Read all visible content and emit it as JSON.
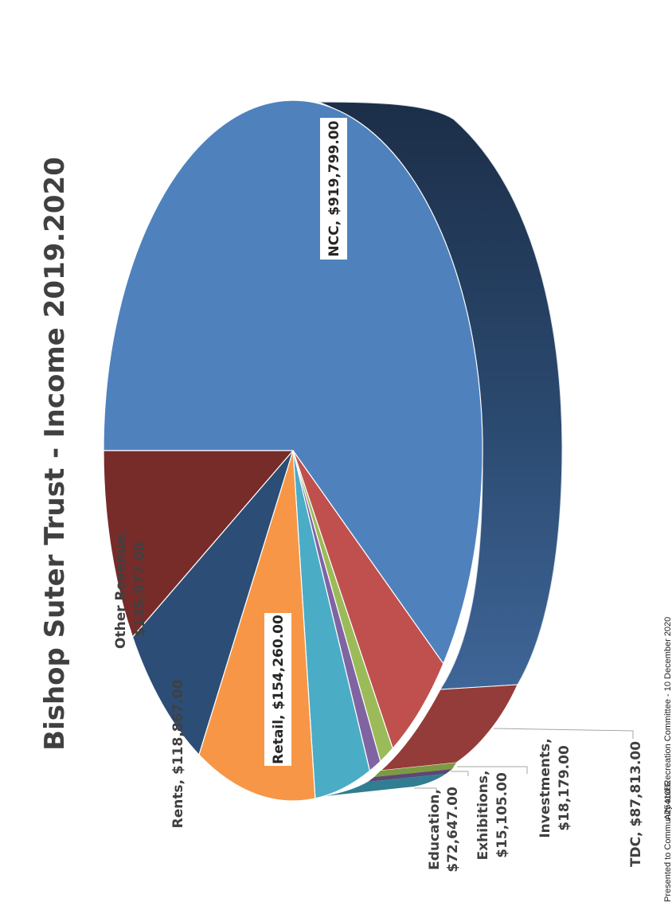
{
  "chart_data": {
    "type": "pie",
    "title": "Bishop Suter Trust - Income 2019.2020",
    "unit": "$",
    "series": [
      {
        "name": "Income",
        "categories": [
          "NCC",
          "TDC",
          "Investments",
          "Exhibitions",
          "Education",
          "Retail",
          "Rents",
          "Other Revenue"
        ],
        "values": [
          919799.0,
          87813.0,
          18179.0,
          15105.0,
          72647.0,
          154260.0,
          118867.0,
          135977.0
        ]
      }
    ],
    "slices": [
      {
        "name": "NCC",
        "value": "$919,799.00",
        "color": "#4f81bd",
        "side_color": "#385d8a"
      },
      {
        "name": "TDC",
        "value": "$87,813.00",
        "color": "#c0504d",
        "side_color": "#8c3836"
      },
      {
        "name": "Investments",
        "value": "$18,179.00",
        "color": "#9bbb59",
        "side_color": "#71893f"
      },
      {
        "name": "Exhibitions",
        "value": "$15,105.00",
        "color": "#8064a2",
        "side_color": "#5c4776"
      },
      {
        "name": "Education",
        "value": "$72,647.00",
        "color": "#4bacc6",
        "side_color": "#317d92"
      },
      {
        "name": "Retail",
        "value": "$154,260.00",
        "color": "#f79646",
        "side_color": "#b66d31"
      },
      {
        "name": "Rents",
        "value": "$118,867.00",
        "color": "#2c4d75",
        "side_color": "#1f3755"
      },
      {
        "name": "Other Revenue",
        "value": "$135,977.00",
        "color": "#772c2a",
        "side_color": "#561f1e"
      }
    ]
  },
  "labels": {
    "ncc": "NCC,  $919,799.00",
    "tdc": "TDC,  $87,813.00",
    "investments_name": "Investments,",
    "investments_value": "$18,179.00",
    "exhibitions_name": "Exhibitions,",
    "exhibitions_value": "$15,105.00",
    "education_name": "Education,",
    "education_value": "$72,647.00",
    "retail": "Retail,  $154,260.00",
    "rents": "Rents,  $118,867.00",
    "other_name": "Other Revenue,",
    "other_value": "$135,977.00"
  },
  "footer": {
    "presented": "Presented to Community and Recreation Committee - 10 December 2020",
    "doc_id": "A2541082"
  }
}
